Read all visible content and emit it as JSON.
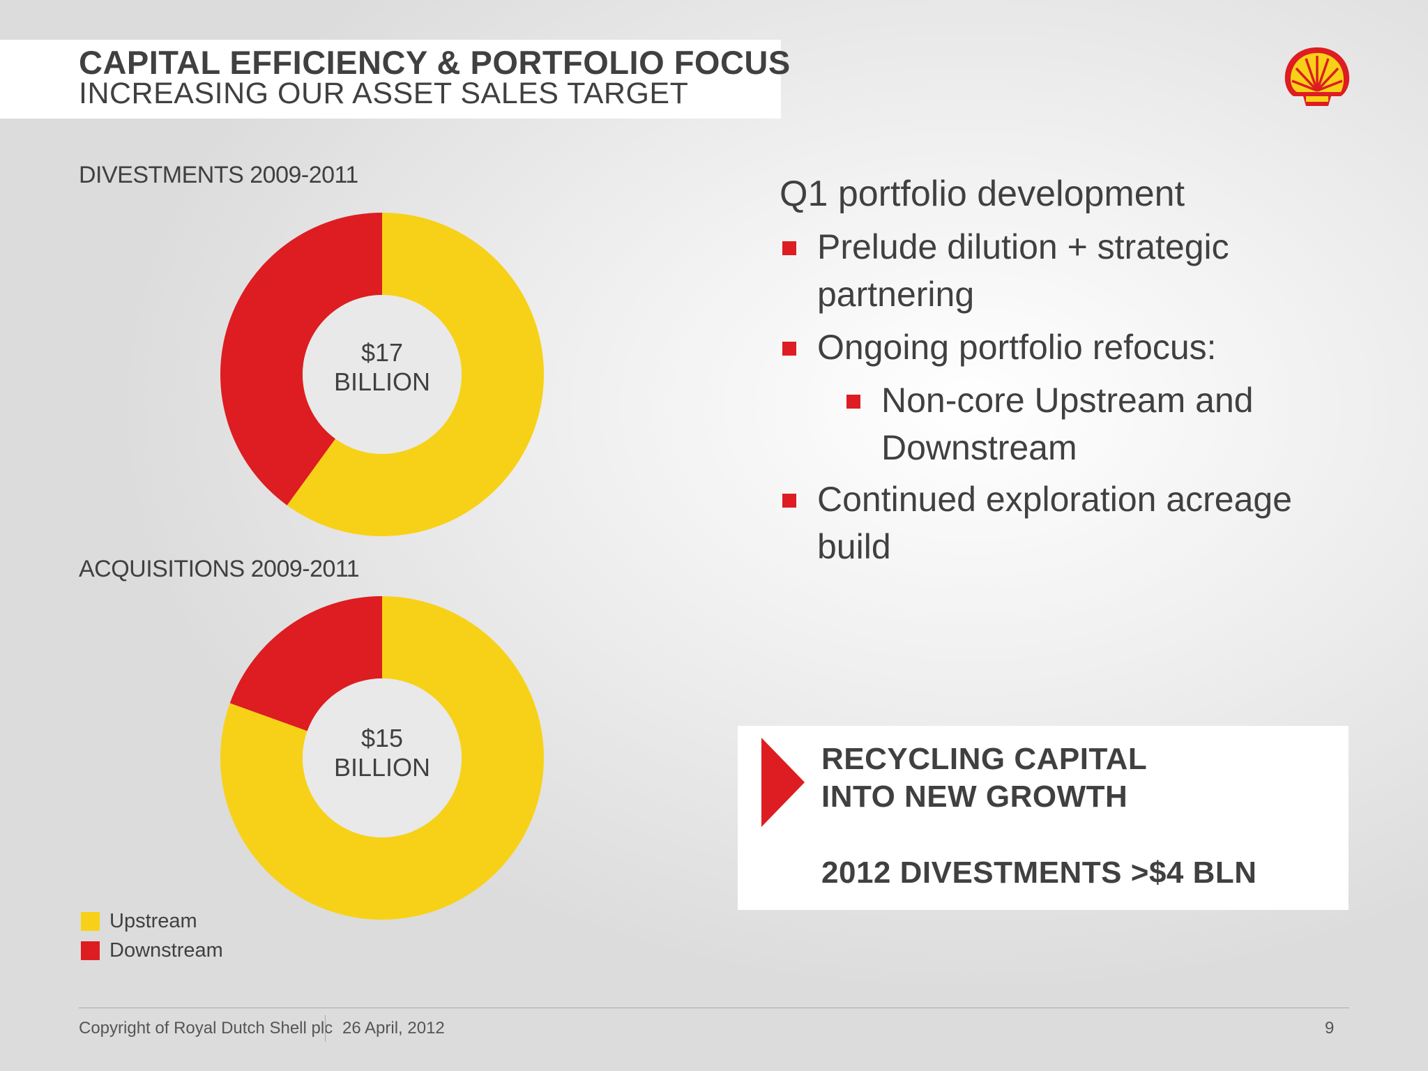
{
  "header": {
    "title": "CAPITAL EFFICIENCY & PORTFOLIO FOCUS",
    "subtitle": "INCREASING OUR ASSET SALES TARGET",
    "logo_icon": "shell-pecten-logo-icon"
  },
  "colors": {
    "upstream": "#f7d117",
    "downstream": "#dd1d21",
    "text": "#404040"
  },
  "chart_data": [
    {
      "type": "pie",
      "title": "DIVESTMENTS  2009-2011",
      "center_label_line1": "$17",
      "center_label_line2": "BILLION",
      "categories": [
        "Upstream",
        "Downstream"
      ],
      "values": [
        60,
        40
      ],
      "legend": "bottom-left"
    },
    {
      "type": "pie",
      "title": "ACQUISITIONS 2009-2011",
      "center_label_line1": "$15",
      "center_label_line2": "BILLION",
      "categories": [
        "Upstream",
        "Downstream"
      ],
      "values": [
        80.5,
        19.5
      ],
      "legend": "bottom-left"
    }
  ],
  "legend": {
    "items": [
      "Upstream",
      "Downstream"
    ]
  },
  "panel": {
    "title": "Q1 portfolio development",
    "bullets": [
      {
        "line1": "Prelude dilution + strategic",
        "line2": "partnering"
      },
      {
        "line1": "Ongoing portfolio refocus:"
      },
      {
        "line1": "Non-core Upstream and",
        "line2": "Downstream"
      },
      {
        "line1": "Continued exploration acreage",
        "line2": "build"
      }
    ]
  },
  "callout": {
    "line1": "RECYCLING CAPITAL",
    "line2": "INTO NEW GROWTH",
    "line3": "2012 DIVESTMENTS >$4 BLN"
  },
  "footer": {
    "copyright": "Copyright of Royal Dutch Shell plc",
    "date": "26 April, 2012",
    "page_number": "9"
  }
}
